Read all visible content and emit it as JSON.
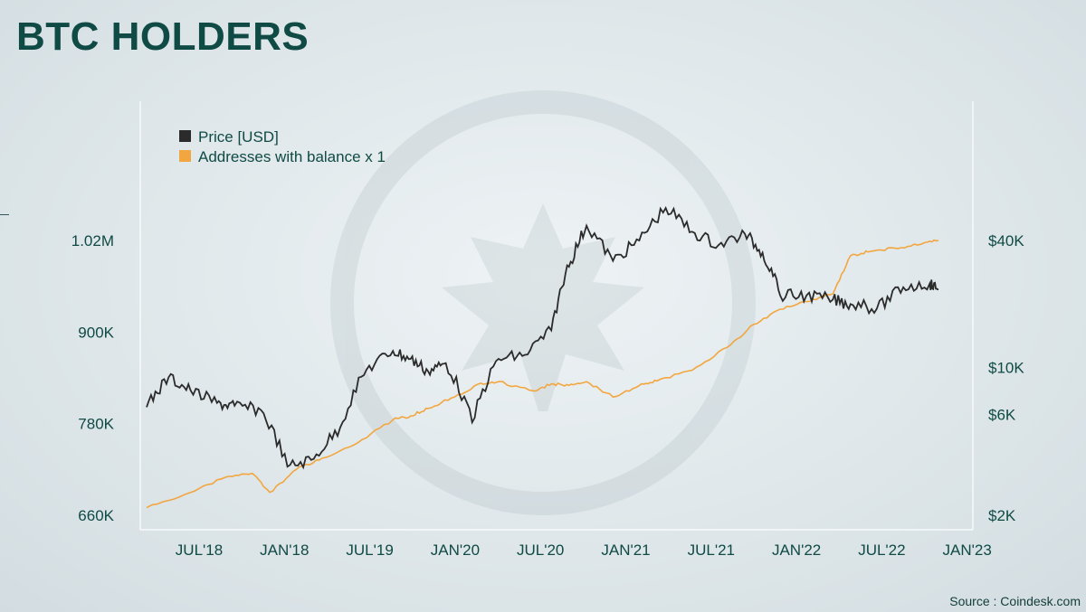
{
  "title": "BTC HOLDERS",
  "source": "Source : Coindesk.com",
  "chart_data": {
    "type": "line",
    "title": "BTC HOLDERS",
    "x_ticks": [
      "JUL'18",
      "JAN'18",
      "JUL'19",
      "JAN'20",
      "JUL'20",
      "JAN'21",
      "JUL'21",
      "JAN'22",
      "JUL'22",
      "JAN'23"
    ],
    "y_left": {
      "ticks": [
        {
          "value": 660000,
          "label": "660K"
        },
        {
          "value": 780000,
          "label": "780K"
        },
        {
          "value": 900000,
          "label": "900K"
        },
        {
          "value": 1020000,
          "label": "1.02M"
        }
      ],
      "range": [
        660000,
        1020000
      ]
    },
    "y_right": {
      "scale": "log",
      "ticks": [
        {
          "value": 2000,
          "label": "$2K"
        },
        {
          "value": 6000,
          "label": "$6K"
        },
        {
          "value": 10000,
          "label": "$10K"
        },
        {
          "value": 40000,
          "label": "$40K"
        }
      ]
    },
    "legend_position": "top-left",
    "grid": false,
    "series": [
      {
        "name": "Price [USD]",
        "axis": "right",
        "color": "#2b2b2b",
        "x": [
          0,
          0.25,
          0.5,
          0.8,
          1.0,
          1.3,
          1.6,
          1.9,
          2.2,
          2.5,
          2.8,
          3.0,
          3.2,
          3.4,
          3.7,
          4.0,
          4.3,
          4.6,
          4.8,
          5.0,
          5.3,
          5.6,
          5.9,
          6.2,
          6.5,
          6.8,
          7.0,
          7.2,
          7.5,
          7.8,
          8.0,
          8.3,
          8.6,
          8.9,
          9.0
        ],
        "values": [
          6500,
          9000,
          7800,
          6800,
          6600,
          6300,
          3400,
          3700,
          5200,
          9800,
          12000,
          11000,
          9600,
          10500,
          5500,
          11000,
          11500,
          15000,
          30000,
          47000,
          32000,
          40000,
          57000,
          44000,
          38000,
          43000,
          35000,
          22000,
          22000,
          21000,
          20000,
          19000,
          24000,
          25000,
          23500
        ]
      },
      {
        "name": "Addresses with balance x 1",
        "axis": "left",
        "color": "#f2a640",
        "x": [
          0,
          0.5,
          0.9,
          1.2,
          1.4,
          1.7,
          2.0,
          2.4,
          2.8,
          3.0,
          3.2,
          3.5,
          3.8,
          4.0,
          4.4,
          4.6,
          4.8,
          5.0,
          5.3,
          5.6,
          5.8,
          6.2,
          6.6,
          6.9,
          7.2,
          7.5,
          7.8,
          8.0,
          8.2,
          8.5,
          8.8,
          9.0
        ],
        "values": [
          670000,
          690000,
          710000,
          715000,
          690000,
          720000,
          735000,
          755000,
          785000,
          790000,
          800000,
          815000,
          833000,
          835000,
          823000,
          832000,
          830000,
          835000,
          815000,
          830000,
          836000,
          850000,
          880000,
          910000,
          930000,
          940000,
          950000,
          1000000,
          1005000,
          1010000,
          1015000,
          1020000
        ]
      }
    ]
  }
}
